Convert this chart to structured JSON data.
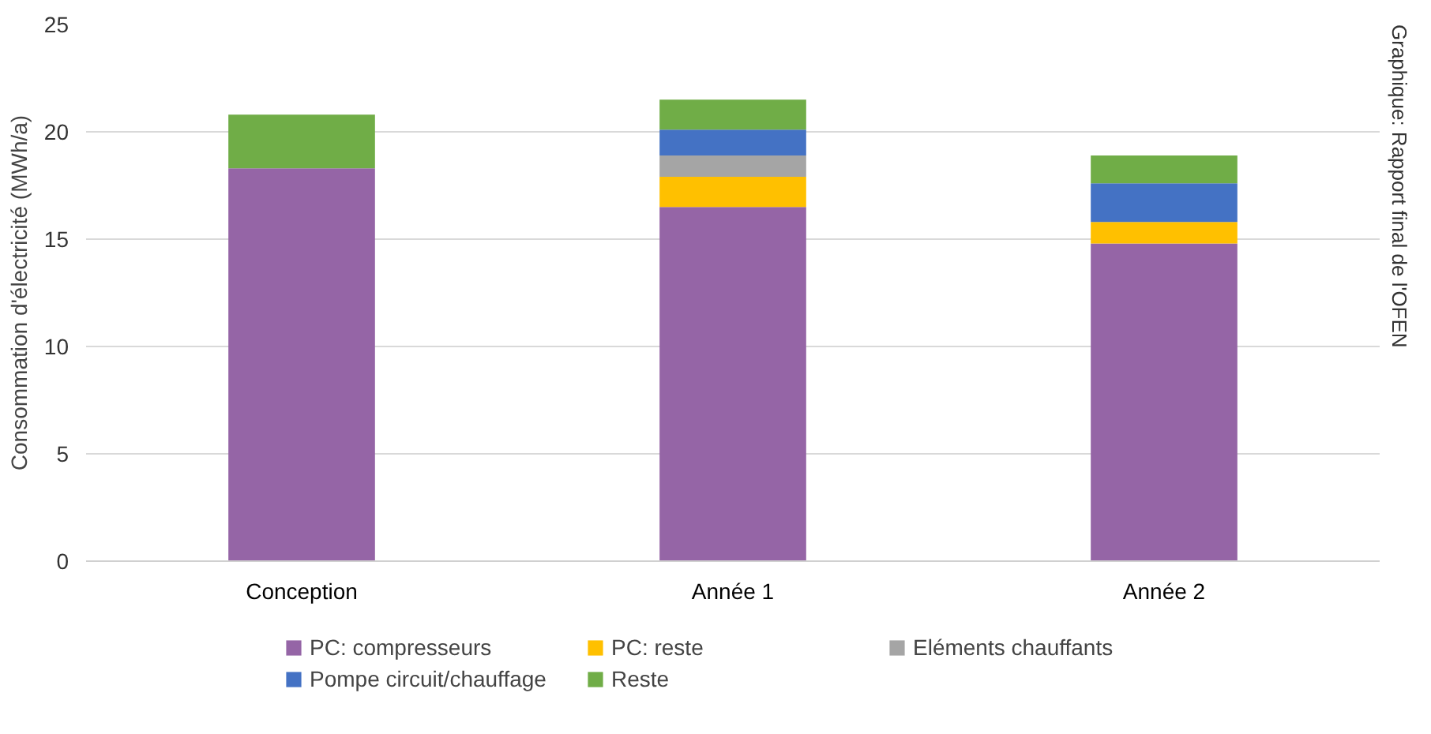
{
  "chart_data": {
    "type": "bar",
    "stacked": true,
    "ylabel": "Consommation d'électricité (MWh/a)",
    "categories": [
      "Conception",
      "Année 1",
      "Année 2"
    ],
    "series": [
      {
        "name": "PC: compresseurs",
        "color": "#9565a6",
        "values": [
          18.3,
          16.5,
          14.8
        ]
      },
      {
        "name": "PC: reste",
        "color": "#ffc000",
        "values": [
          0,
          1.4,
          1.0
        ]
      },
      {
        "name": "Eléments chauffants",
        "color": "#a5a5a5",
        "values": [
          0,
          1.0,
          0
        ]
      },
      {
        "name": "Pompe circuit/chauffage",
        "color": "#4472c4",
        "values": [
          0,
          1.2,
          1.8
        ]
      },
      {
        "name": "Reste",
        "color": "#70ad47",
        "values": [
          2.5,
          1.4,
          1.3
        ]
      }
    ],
    "ylim": [
      0,
      25
    ],
    "yticks": [
      0,
      5,
      10,
      15,
      20,
      25
    ],
    "grid": "y",
    "legend": "bottom",
    "annotations": [
      "Graphique: Rapport final de l'OFEN"
    ]
  }
}
